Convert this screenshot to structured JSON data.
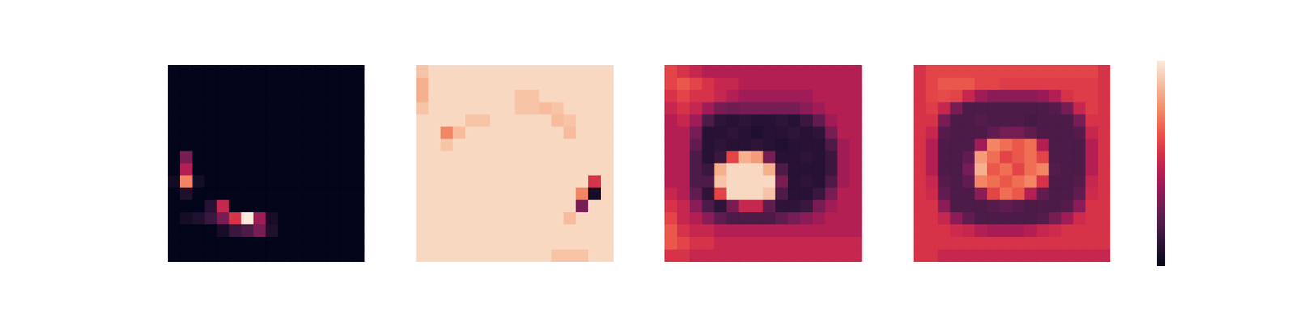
{
  "chart_data": [
    {
      "type": "heatmap",
      "tick_labels": false,
      "color_range": [
        0,
        1
      ],
      "cells": [
        [
          0,
          0,
          0,
          0,
          0,
          0,
          0,
          0,
          0,
          0,
          0,
          0,
          0,
          0,
          0,
          0
        ],
        [
          0,
          0,
          0,
          0,
          0,
          0,
          0,
          0,
          0,
          0,
          0,
          0,
          0,
          0,
          0,
          0
        ],
        [
          0,
          0,
          0,
          0,
          0,
          0,
          0,
          0,
          0,
          0,
          0,
          0,
          0,
          0,
          0,
          0
        ],
        [
          0,
          0,
          0,
          0,
          0,
          0,
          0,
          0,
          0,
          0,
          0,
          0,
          0,
          0,
          0,
          0
        ],
        [
          0,
          0,
          0,
          0,
          0,
          0,
          0,
          0,
          0,
          0,
          0,
          0,
          0,
          0,
          0,
          0
        ],
        [
          0,
          0,
          0,
          0,
          0,
          0,
          0,
          0,
          0,
          0,
          0,
          0,
          0,
          0,
          0,
          0
        ],
        [
          0,
          0,
          0,
          0,
          0,
          0,
          0,
          0,
          0,
          0,
          0,
          0,
          0,
          0,
          0,
          0
        ],
        [
          0,
          0.3,
          0,
          0,
          0,
          0,
          0,
          0,
          0,
          0,
          0,
          0,
          0,
          0,
          0,
          0
        ],
        [
          0,
          0.45,
          0,
          0,
          0,
          0,
          0,
          0,
          0,
          0,
          0,
          0,
          0,
          0,
          0,
          0
        ],
        [
          0.04,
          0.75,
          0.05,
          0,
          0,
          0,
          0,
          0,
          0,
          0,
          0,
          0,
          0,
          0,
          0,
          0
        ],
        [
          0,
          0.08,
          0,
          0,
          0,
          0,
          0,
          0,
          0,
          0,
          0,
          0,
          0,
          0,
          0,
          0
        ],
        [
          0,
          0,
          0,
          0.1,
          0.5,
          0,
          0,
          0,
          0,
          0,
          0,
          0,
          0,
          0,
          0,
          0
        ],
        [
          0,
          0.05,
          0.08,
          0.15,
          0.3,
          0.55,
          1,
          0.4,
          0.06,
          0,
          0,
          0,
          0,
          0,
          0,
          0
        ],
        [
          0,
          0,
          0,
          0,
          0.06,
          0.15,
          0.2,
          0.3,
          0.08,
          0,
          0,
          0,
          0,
          0,
          0,
          0
        ],
        [
          0,
          0,
          0,
          0,
          0,
          0,
          0,
          0,
          0,
          0,
          0,
          0,
          0,
          0,
          0,
          0
        ],
        [
          0,
          0,
          0,
          0,
          0,
          0,
          0,
          0,
          0,
          0,
          0,
          0,
          0,
          0,
          0,
          0
        ]
      ]
    },
    {
      "type": "heatmap",
      "tick_labels": false,
      "color_range": [
        0,
        1
      ],
      "cells": [
        [
          0.9,
          0.95,
          0.95,
          0.95,
          0.95,
          0.95,
          0.95,
          0.95,
          0.95,
          0.95,
          0.95,
          0.95,
          0.95,
          0.95,
          0.95,
          0.95
        ],
        [
          0.85,
          0.95,
          0.95,
          0.95,
          0.95,
          0.95,
          0.95,
          0.95,
          0.95,
          0.95,
          0.95,
          0.95,
          0.95,
          0.95,
          0.95,
          0.95
        ],
        [
          0.85,
          0.95,
          0.95,
          0.95,
          0.95,
          0.95,
          0.95,
          0.95,
          0.9,
          0.9,
          0.95,
          0.95,
          0.95,
          0.95,
          0.95,
          0.95
        ],
        [
          0.9,
          0.95,
          0.95,
          0.95,
          0.95,
          0.95,
          0.95,
          0.95,
          0.9,
          0.9,
          0.88,
          0.9,
          0.95,
          0.95,
          0.95,
          0.95
        ],
        [
          0.95,
          0.95,
          0.95,
          0.95,
          0.9,
          0.9,
          0.95,
          0.95,
          0.95,
          0.95,
          0.95,
          0.88,
          0.9,
          0.95,
          0.95,
          0.95
        ],
        [
          0.95,
          0.95,
          0.75,
          0.88,
          0.95,
          0.95,
          0.95,
          0.95,
          0.95,
          0.95,
          0.95,
          0.95,
          0.88,
          0.95,
          0.95,
          0.95
        ],
        [
          0.95,
          0.95,
          0.9,
          0.95,
          0.95,
          0.95,
          0.95,
          0.95,
          0.95,
          0.95,
          0.95,
          0.95,
          0.95,
          0.95,
          0.95,
          0.95
        ],
        [
          0.95,
          0.95,
          0.95,
          0.95,
          0.95,
          0.95,
          0.95,
          0.95,
          0.95,
          0.95,
          0.95,
          0.95,
          0.95,
          0.95,
          0.95,
          0.95
        ],
        [
          0.95,
          0.95,
          0.95,
          0.95,
          0.95,
          0.95,
          0.95,
          0.95,
          0.95,
          0.95,
          0.95,
          0.95,
          0.95,
          0.95,
          0.95,
          0.95
        ],
        [
          0.95,
          0.95,
          0.95,
          0.95,
          0.95,
          0.95,
          0.95,
          0.95,
          0.95,
          0.95,
          0.95,
          0.95,
          0.95,
          0.95,
          0.55,
          0.95
        ],
        [
          0.95,
          0.95,
          0.95,
          0.95,
          0.95,
          0.95,
          0.95,
          0.95,
          0.95,
          0.95,
          0.95,
          0.95,
          0.95,
          0.75,
          0.05,
          0.95
        ],
        [
          0.95,
          0.95,
          0.95,
          0.95,
          0.95,
          0.95,
          0.95,
          0.95,
          0.95,
          0.95,
          0.95,
          0.95,
          0.95,
          0.3,
          0.95,
          0.95
        ],
        [
          0.95,
          0.95,
          0.95,
          0.95,
          0.95,
          0.95,
          0.95,
          0.95,
          0.95,
          0.95,
          0.95,
          0.95,
          0.88,
          0.95,
          0.95,
          0.95
        ],
        [
          0.95,
          0.95,
          0.95,
          0.95,
          0.95,
          0.95,
          0.95,
          0.95,
          0.95,
          0.95,
          0.95,
          0.95,
          0.95,
          0.95,
          0.95,
          0.95
        ],
        [
          0.95,
          0.95,
          0.95,
          0.95,
          0.95,
          0.95,
          0.95,
          0.95,
          0.95,
          0.95,
          0.95,
          0.95,
          0.95,
          0.95,
          0.95,
          0.95
        ],
        [
          0.95,
          0.95,
          0.95,
          0.95,
          0.95,
          0.95,
          0.95,
          0.95,
          0.95,
          0.95,
          0.95,
          0.9,
          0.9,
          0.9,
          0.95,
          0.95
        ]
      ]
    },
    {
      "type": "heatmap",
      "tick_labels": false,
      "color_range": [
        0,
        1
      ],
      "cells": [
        [
          0.6,
          0.55,
          0.5,
          0.45,
          0.45,
          0.45,
          0.45,
          0.45,
          0.45,
          0.45,
          0.45,
          0.45,
          0.45,
          0.45,
          0.45,
          0.45
        ],
        [
          0.6,
          0.65,
          0.6,
          0.55,
          0.5,
          0.5,
          0.45,
          0.45,
          0.45,
          0.45,
          0.45,
          0.45,
          0.45,
          0.45,
          0.45,
          0.45
        ],
        [
          0.55,
          0.6,
          0.55,
          0.55,
          0.5,
          0.45,
          0.4,
          0.4,
          0.4,
          0.4,
          0.4,
          0.4,
          0.45,
          0.45,
          0.45,
          0.45
        ],
        [
          0.5,
          0.55,
          0.5,
          0.4,
          0.3,
          0.28,
          0.3,
          0.3,
          0.3,
          0.3,
          0.3,
          0.35,
          0.4,
          0.45,
          0.45,
          0.45
        ],
        [
          0.45,
          0.5,
          0.4,
          0.2,
          0.12,
          0.1,
          0.12,
          0.1,
          0.1,
          0.12,
          0.1,
          0.15,
          0.25,
          0.4,
          0.45,
          0.45
        ],
        [
          0.45,
          0.45,
          0.3,
          0.1,
          0.1,
          0.12,
          0.1,
          0.08,
          0.1,
          0.1,
          0.12,
          0.1,
          0.12,
          0.3,
          0.45,
          0.45
        ],
        [
          0.45,
          0.45,
          0.25,
          0.1,
          0.12,
          0.1,
          0.1,
          0.12,
          0.1,
          0.08,
          0.1,
          0.1,
          0.1,
          0.2,
          0.4,
          0.45
        ],
        [
          0.45,
          0.45,
          0.2,
          0.1,
          0.15,
          0.6,
          0.85,
          0.8,
          0.3,
          0.1,
          0.1,
          0.12,
          0.1,
          0.15,
          0.4,
          0.45
        ],
        [
          0.45,
          0.45,
          0.2,
          0.15,
          0.85,
          0.95,
          0.95,
          0.95,
          0.85,
          0.2,
          0.1,
          0.1,
          0.1,
          0.15,
          0.4,
          0.45
        ],
        [
          0.45,
          0.45,
          0.2,
          0.2,
          0.9,
          0.95,
          0.95,
          0.95,
          0.95,
          0.3,
          0.1,
          0.12,
          0.1,
          0.2,
          0.4,
          0.45
        ],
        [
          0.5,
          0.45,
          0.25,
          0.12,
          0.6,
          0.95,
          0.95,
          0.95,
          0.9,
          0.2,
          0.1,
          0.1,
          0.15,
          0.3,
          0.45,
          0.45
        ],
        [
          0.55,
          0.5,
          0.35,
          0.2,
          0.12,
          0.3,
          0.5,
          0.5,
          0.25,
          0.12,
          0.12,
          0.15,
          0.3,
          0.4,
          0.45,
          0.45
        ],
        [
          0.6,
          0.5,
          0.45,
          0.35,
          0.25,
          0.2,
          0.2,
          0.2,
          0.2,
          0.25,
          0.3,
          0.35,
          0.4,
          0.45,
          0.45,
          0.45
        ],
        [
          0.65,
          0.55,
          0.5,
          0.5,
          0.45,
          0.45,
          0.45,
          0.45,
          0.45,
          0.45,
          0.45,
          0.45,
          0.45,
          0.45,
          0.45,
          0.45
        ],
        [
          0.65,
          0.6,
          0.55,
          0.55,
          0.5,
          0.5,
          0.5,
          0.5,
          0.5,
          0.5,
          0.5,
          0.5,
          0.5,
          0.5,
          0.5,
          0.5
        ],
        [
          0.55,
          0.55,
          0.5,
          0.5,
          0.5,
          0.5,
          0.5,
          0.5,
          0.5,
          0.5,
          0.5,
          0.5,
          0.5,
          0.5,
          0.5,
          0.5
        ]
      ]
    },
    {
      "type": "heatmap",
      "tick_labels": false,
      "color_range": [
        0,
        1
      ],
      "colorbar_range": [
        0,
        1
      ],
      "colorbar_ticks": [],
      "cells": [
        [
          0.55,
          0.6,
          0.6,
          0.6,
          0.6,
          0.6,
          0.6,
          0.6,
          0.6,
          0.6,
          0.6,
          0.6,
          0.6,
          0.6,
          0.6,
          0.55
        ],
        [
          0.55,
          0.6,
          0.65,
          0.65,
          0.65,
          0.6,
          0.6,
          0.58,
          0.58,
          0.58,
          0.58,
          0.58,
          0.58,
          0.58,
          0.58,
          0.55
        ],
        [
          0.55,
          0.6,
          0.62,
          0.6,
          0.5,
          0.4,
          0.35,
          0.35,
          0.35,
          0.35,
          0.38,
          0.45,
          0.55,
          0.58,
          0.58,
          0.55
        ],
        [
          0.55,
          0.58,
          0.5,
          0.3,
          0.2,
          0.2,
          0.2,
          0.2,
          0.2,
          0.2,
          0.2,
          0.22,
          0.3,
          0.5,
          0.58,
          0.55
        ],
        [
          0.55,
          0.55,
          0.3,
          0.2,
          0.2,
          0.22,
          0.2,
          0.2,
          0.2,
          0.18,
          0.2,
          0.2,
          0.2,
          0.3,
          0.55,
          0.55
        ],
        [
          0.55,
          0.5,
          0.22,
          0.2,
          0.2,
          0.2,
          0.25,
          0.3,
          0.3,
          0.25,
          0.2,
          0.2,
          0.2,
          0.22,
          0.5,
          0.55
        ],
        [
          0.55,
          0.45,
          0.2,
          0.2,
          0.2,
          0.4,
          0.75,
          0.7,
          0.65,
          0.7,
          0.45,
          0.2,
          0.2,
          0.2,
          0.45,
          0.55
        ],
        [
          0.55,
          0.45,
          0.2,
          0.2,
          0.25,
          0.8,
          0.7,
          0.6,
          0.65,
          0.7,
          0.6,
          0.2,
          0.2,
          0.2,
          0.45,
          0.55
        ],
        [
          0.55,
          0.45,
          0.2,
          0.2,
          0.3,
          0.85,
          0.65,
          0.7,
          0.6,
          0.7,
          0.75,
          0.22,
          0.2,
          0.2,
          0.45,
          0.55
        ],
        [
          0.55,
          0.5,
          0.22,
          0.2,
          0.25,
          0.75,
          0.7,
          0.65,
          0.7,
          0.75,
          0.55,
          0.2,
          0.2,
          0.22,
          0.5,
          0.55
        ],
        [
          0.55,
          0.52,
          0.25,
          0.2,
          0.2,
          0.35,
          0.6,
          0.7,
          0.65,
          0.45,
          0.25,
          0.2,
          0.2,
          0.25,
          0.52,
          0.55
        ],
        [
          0.55,
          0.55,
          0.35,
          0.2,
          0.2,
          0.2,
          0.22,
          0.25,
          0.22,
          0.2,
          0.2,
          0.2,
          0.22,
          0.35,
          0.55,
          0.55
        ],
        [
          0.55,
          0.55,
          0.5,
          0.35,
          0.25,
          0.2,
          0.2,
          0.2,
          0.2,
          0.2,
          0.22,
          0.3,
          0.4,
          0.52,
          0.55,
          0.55
        ],
        [
          0.55,
          0.55,
          0.55,
          0.52,
          0.5,
          0.45,
          0.42,
          0.42,
          0.42,
          0.45,
          0.5,
          0.52,
          0.55,
          0.55,
          0.55,
          0.55
        ],
        [
          0.55,
          0.55,
          0.55,
          0.55,
          0.55,
          0.55,
          0.55,
          0.55,
          0.55,
          0.55,
          0.55,
          0.55,
          0.55,
          0.55,
          0.55,
          0.55
        ],
        [
          0.55,
          0.55,
          0.5,
          0.5,
          0.5,
          0.5,
          0.5,
          0.5,
          0.5,
          0.5,
          0.5,
          0.5,
          0.5,
          0.5,
          0.5,
          0.5
        ]
      ]
    }
  ]
}
